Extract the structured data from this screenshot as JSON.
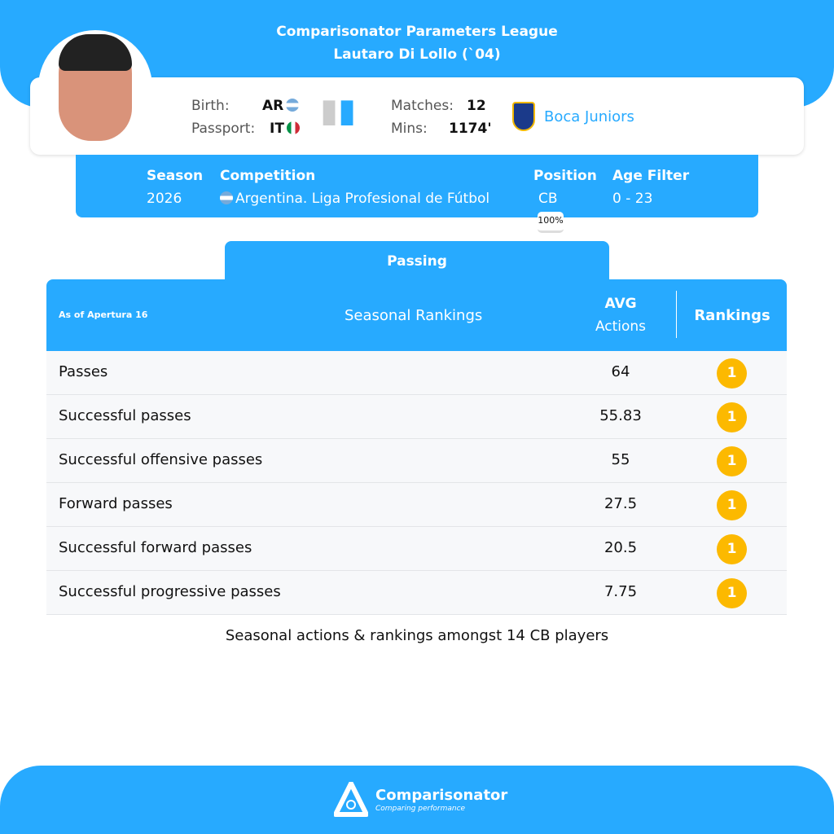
{
  "header": {
    "league": "Comparisonator Parameters League",
    "player": "Lautaro Di Lollo (`04)"
  },
  "profile": {
    "birth_label": "Birth:",
    "birth": "AR",
    "passport_label": "Passport:",
    "passport": "IT",
    "matches_label": "Matches:",
    "matches": "12",
    "mins_label": "Mins:",
    "mins": "1174'",
    "club": "Boca Juniors",
    "foot_icon": "feet-icon"
  },
  "filters": {
    "season_label": "Season",
    "season": "2026",
    "competition_label": "Competition",
    "competition": "Argentina. Liga Profesional de Fútbol",
    "position_label": "Position",
    "position": "CB",
    "position_pct": "100%",
    "age_label": "Age Filter",
    "age": "0 - 23"
  },
  "tab": "Passing",
  "table": {
    "as_of": "As of Apertura 16",
    "title": "Seasonal Rankings",
    "avg1": "AVG",
    "avg2": "Actions",
    "rankings": "Rankings",
    "rows": [
      {
        "name": "Passes",
        "avg": "64",
        "rank": "1"
      },
      {
        "name": "Successful passes",
        "avg": "55.83",
        "rank": "1"
      },
      {
        "name": "Successful offensive passes",
        "avg": "55",
        "rank": "1"
      },
      {
        "name": "Forward passes",
        "avg": "27.5",
        "rank": "1"
      },
      {
        "name": "Successful forward passes",
        "avg": "20.5",
        "rank": "1"
      },
      {
        "name": "Successful progressive passes",
        "avg": "7.75",
        "rank": "1"
      }
    ]
  },
  "note": "Seasonal actions & rankings amongst 14 CB players",
  "footer": {
    "brand": "Comparisonator",
    "tagline": "Comparing performance"
  },
  "colors": {
    "accent": "#27aaff",
    "rank_badge": "#fcb900"
  }
}
